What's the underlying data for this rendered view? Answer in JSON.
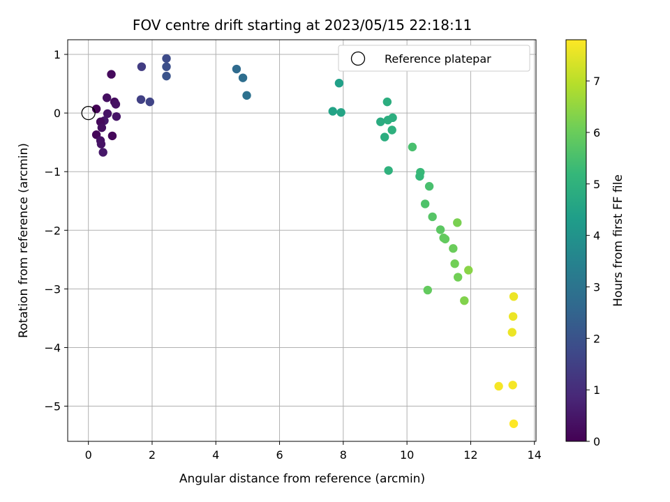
{
  "chart_data": {
    "type": "scatter",
    "title": "FOV centre drift starting at 2023/05/15 22:18:11",
    "xlabel": "Angular distance from reference (arcmin)",
    "ylabel": "Rotation from reference (arcmin)",
    "xlim": [
      -0.65,
      14.05
    ],
    "ylim": [
      -5.6,
      1.25
    ],
    "xticks": [
      0,
      2,
      4,
      6,
      8,
      10,
      12,
      14
    ],
    "yticks": [
      1,
      0,
      -1,
      -2,
      -3,
      -4,
      -5
    ],
    "xtick_labels": [
      "0",
      "2",
      "4",
      "6",
      "8",
      "10",
      "12",
      "14"
    ],
    "ytick_labels": [
      "1",
      "0",
      "−1",
      "−2",
      "−3",
      "−4",
      "−5"
    ],
    "grid": true,
    "legend": {
      "position": "top-right",
      "entries": [
        "Reference platepar"
      ]
    },
    "reference_point": {
      "x": 0,
      "y": 0,
      "label": "Reference platepar"
    },
    "colorbar": {
      "label": "Hours from first FF file",
      "min": 0,
      "max": 7.8,
      "ticks": [
        0,
        1,
        2,
        3,
        4,
        5,
        6,
        7
      ],
      "tick_labels": [
        "0",
        "1",
        "2",
        "3",
        "4",
        "5",
        "6",
        "7"
      ],
      "colormap": "viridis",
      "stops": [
        "#440154",
        "#482878",
        "#3e4989",
        "#31688e",
        "#26828e",
        "#1f9e89",
        "#35b779",
        "#6ece58",
        "#b5de2b",
        "#fde725"
      ]
    },
    "points": [
      {
        "x": 0.25,
        "y": 0.07,
        "t": 0.05
      },
      {
        "x": 0.72,
        "y": 0.66,
        "t": 0.2
      },
      {
        "x": 0.58,
        "y": 0.26,
        "t": 0.3
      },
      {
        "x": 0.82,
        "y": 0.19,
        "t": 0.25
      },
      {
        "x": 0.86,
        "y": 0.15,
        "t": 0.35
      },
      {
        "x": 0.6,
        "y": -0.01,
        "t": 0.4
      },
      {
        "x": 0.88,
        "y": -0.06,
        "t": 0.45
      },
      {
        "x": 0.5,
        "y": -0.13,
        "t": 0.5
      },
      {
        "x": 0.38,
        "y": -0.15,
        "t": 0.2
      },
      {
        "x": 0.42,
        "y": -0.25,
        "t": 0.3
      },
      {
        "x": 0.25,
        "y": -0.37,
        "t": 0.1
      },
      {
        "x": 0.75,
        "y": -0.39,
        "t": 0.15
      },
      {
        "x": 0.38,
        "y": -0.47,
        "t": 0.35
      },
      {
        "x": 0.4,
        "y": -0.53,
        "t": 0.4
      },
      {
        "x": 0.46,
        "y": -0.67,
        "t": 0.5
      },
      {
        "x": 1.67,
        "y": 0.79,
        "t": 1.4
      },
      {
        "x": 1.65,
        "y": 0.23,
        "t": 1.5
      },
      {
        "x": 1.93,
        "y": 0.19,
        "t": 1.6
      },
      {
        "x": 2.45,
        "y": 0.93,
        "t": 1.8
      },
      {
        "x": 2.45,
        "y": 0.79,
        "t": 1.9
      },
      {
        "x": 2.45,
        "y": 0.63,
        "t": 2.0
      },
      {
        "x": 4.65,
        "y": 0.75,
        "t": 2.7
      },
      {
        "x": 4.85,
        "y": 0.6,
        "t": 2.8
      },
      {
        "x": 4.97,
        "y": 0.3,
        "t": 2.9
      },
      {
        "x": 7.87,
        "y": 0.51,
        "t": 4.4
      },
      {
        "x": 7.67,
        "y": 0.03,
        "t": 4.5
      },
      {
        "x": 7.93,
        "y": 0.01,
        "t": 4.55
      },
      {
        "x": 9.38,
        "y": 0.19,
        "t": 4.85
      },
      {
        "x": 9.55,
        "y": -0.08,
        "t": 4.9
      },
      {
        "x": 9.4,
        "y": -0.12,
        "t": 4.9
      },
      {
        "x": 9.17,
        "y": -0.15,
        "t": 4.8
      },
      {
        "x": 9.53,
        "y": -0.29,
        "t": 4.95
      },
      {
        "x": 9.3,
        "y": -0.41,
        "t": 4.85
      },
      {
        "x": 10.17,
        "y": -0.58,
        "t": 5.5
      },
      {
        "x": 9.42,
        "y": -0.98,
        "t": 5.0
      },
      {
        "x": 10.42,
        "y": -1.01,
        "t": 5.25
      },
      {
        "x": 10.4,
        "y": -1.08,
        "t": 5.2
      },
      {
        "x": 10.7,
        "y": -1.25,
        "t": 5.5
      },
      {
        "x": 10.57,
        "y": -1.55,
        "t": 5.6
      },
      {
        "x": 10.8,
        "y": -1.77,
        "t": 5.7
      },
      {
        "x": 11.58,
        "y": -1.87,
        "t": 6.2
      },
      {
        "x": 11.05,
        "y": -1.99,
        "t": 5.8
      },
      {
        "x": 11.15,
        "y": -2.13,
        "t": 5.9
      },
      {
        "x": 11.2,
        "y": -2.15,
        "t": 5.9
      },
      {
        "x": 11.45,
        "y": -2.31,
        "t": 6.0
      },
      {
        "x": 11.5,
        "y": -2.57,
        "t": 6.1
      },
      {
        "x": 11.93,
        "y": -2.68,
        "t": 6.4
      },
      {
        "x": 11.6,
        "y": -2.8,
        "t": 6.1
      },
      {
        "x": 10.65,
        "y": -3.02,
        "t": 5.9
      },
      {
        "x": 11.8,
        "y": -3.2,
        "t": 6.3
      },
      {
        "x": 13.35,
        "y": -3.13,
        "t": 7.6
      },
      {
        "x": 13.33,
        "y": -3.47,
        "t": 7.6
      },
      {
        "x": 13.3,
        "y": -3.74,
        "t": 7.6
      },
      {
        "x": 12.88,
        "y": -4.66,
        "t": 7.7
      },
      {
        "x": 13.32,
        "y": -4.64,
        "t": 7.7
      },
      {
        "x": 13.35,
        "y": -5.3,
        "t": 7.8
      }
    ]
  }
}
